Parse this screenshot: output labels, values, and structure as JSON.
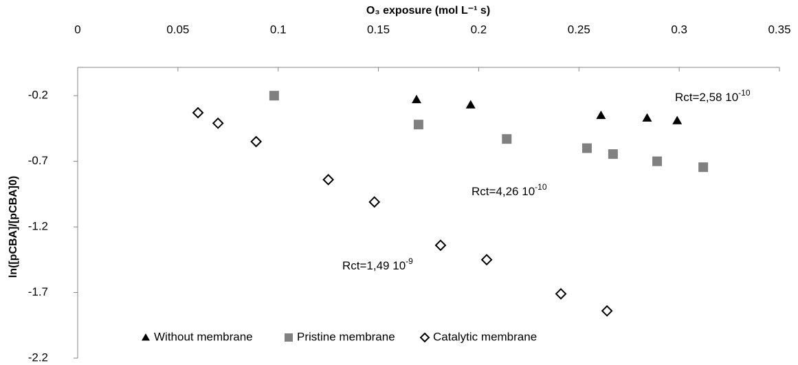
{
  "chart_data": {
    "type": "scatter",
    "xlabel": "O₃ exposure (mol L⁻¹ s)",
    "ylabel": "ln([pCBA]/[pCBA]0)",
    "xlim": [
      0,
      0.35
    ],
    "xticks": [
      0,
      0.05,
      0.1,
      0.15,
      0.2,
      0.25,
      0.3,
      0.35
    ],
    "ylim": [
      -2.2,
      0
    ],
    "yticks": [
      -2.2,
      -1.7,
      -1.2,
      -0.7,
      -0.2
    ],
    "legend": "bottom",
    "series": [
      {
        "name": "Without membrane",
        "marker": "triangle",
        "color": "#000000",
        "x": [
          0.169,
          0.196,
          0.261,
          0.284,
          0.299
        ],
        "values": [
          -0.23,
          -0.27,
          -0.35,
          -0.37,
          -0.39
        ]
      },
      {
        "name": "Pristine membrane",
        "marker": "square",
        "color": "#808080",
        "x": [
          0.098,
          0.17,
          0.214,
          0.254,
          0.267,
          0.289,
          0.312
        ],
        "values": [
          -0.2,
          -0.42,
          -0.53,
          -0.6,
          -0.645,
          -0.7,
          -0.745
        ]
      },
      {
        "name": "Catalytic membrane",
        "marker": "diamond-open",
        "color": "#000000",
        "x": [
          0.06,
          0.07,
          0.089,
          0.125,
          0.148,
          0.181,
          0.204,
          0.241,
          0.264
        ],
        "values": [
          -0.33,
          -0.41,
          -0.55,
          -0.84,
          -1.01,
          -1.34,
          -1.45,
          -1.71,
          -1.84
        ]
      }
    ],
    "annotations": [
      {
        "text": "Rct=2,58 10",
        "sup": "-10"
      },
      {
        "text": "Rct=4,26 10",
        "sup": "-10"
      },
      {
        "text": "Rct=1,49 10",
        "sup": "-9"
      }
    ]
  }
}
